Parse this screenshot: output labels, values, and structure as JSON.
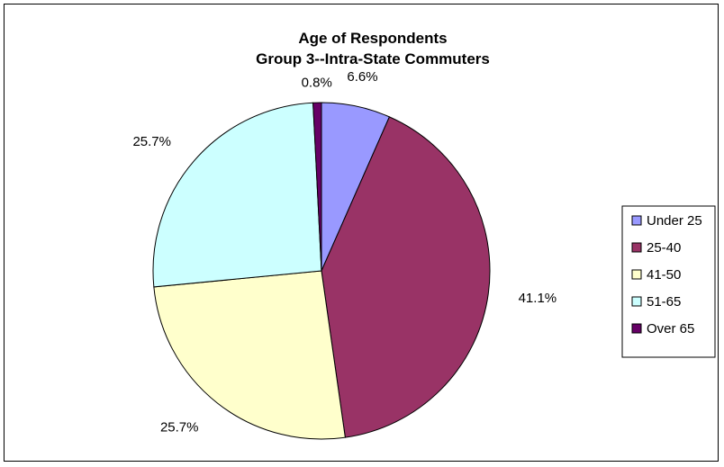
{
  "chart_data": {
    "type": "pie",
    "title": "Age of Respondents",
    "subtitle": "Group 3--Intra-State Commuters",
    "categories": [
      "Under 25",
      "25-40",
      "41-50",
      "51-65",
      "Over 65"
    ],
    "values": [
      6.6,
      41.1,
      25.7,
      25.7,
      0.8
    ],
    "labels": [
      "6.6%",
      "41.1%",
      "25.7%",
      "25.7%",
      "0.8%"
    ],
    "colors": [
      "#9999FF",
      "#993366",
      "#FFFFCC",
      "#CCFFFF",
      "#660066"
    ],
    "start_angle_deg": 0,
    "direction": "clockwise",
    "legend_position": "right"
  }
}
